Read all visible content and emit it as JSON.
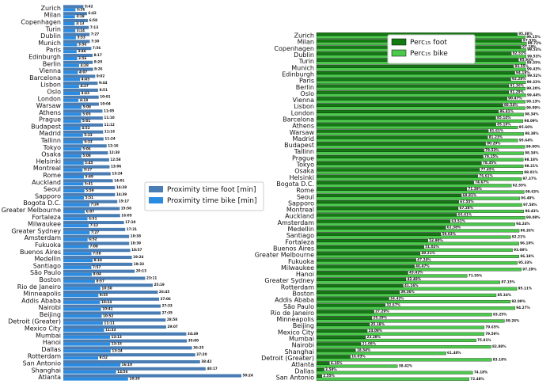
{
  "chart_data": [
    {
      "type": "bar",
      "orientation": "horizontal",
      "legend": "center",
      "xlim": [
        0,
        56
      ],
      "categories": [
        "Zurich",
        "Milan",
        "Copenhagen",
        "Turin",
        "Dublin",
        "Munich",
        "Paris",
        "Edinburgh",
        "Berlin",
        "Vienna",
        "Barcelona",
        "Lisbon",
        "Oslo",
        "London",
        "Warsaw",
        "Athens",
        "Prague",
        "Budapest",
        "Madrid",
        "Tallinn",
        "Tokyo",
        "Osaka",
        "Helsinki",
        "Montreal",
        "Rome",
        "Auckland",
        "Seoul",
        "Sapporo",
        "Bogota D.C.",
        "Greater Melbourne",
        "Fortaleza",
        "Milwaukee",
        "Greater Sydney",
        "Amsterdam",
        "Fukuoka",
        "Buenos Aires",
        "Medellin",
        "Santiago",
        "São Paulo",
        "Boston",
        "Rio de Janeiro",
        "Minneapolis",
        "Addis Ababa",
        "Nairobi",
        "Beijing",
        "Detroit (Greater)",
        "Mexico City",
        "Mumbai",
        "Hanoi",
        "Dallas",
        "Rotterdam",
        "San Antonio",
        "Shanghai",
        "Atlanta"
      ],
      "series": [
        {
          "name": "Proximity time foot [min]",
          "color": "#4a7db3",
          "values": [
            5.7,
            6.7,
            6.9667,
            7.2167,
            7.45,
            7.5,
            7.9333,
            8.2833,
            8.3333,
            8.4333,
            9.0333,
            9.7333,
            9.85,
            10.0167,
            10.0667,
            11.0833,
            11.1667,
            11.2,
            11.2667,
            11.4,
            12.2667,
            12.6333,
            12.9667,
            13.1,
            13.4,
            14.0167,
            14.6333,
            14.65,
            15.2833,
            15.9667,
            16.0833,
            17.1667,
            17.5167,
            18.6333,
            18.65,
            18.95,
            19.4,
            19.55,
            20.2167,
            23.1833,
            25.3167,
            26.75,
            27.1,
            27.55,
            27.5833,
            28.9667,
            29.1167,
            34.8167,
            35,
            36.4167,
            37.3333,
            38.7,
            40.2833,
            50.4
          ],
          "value_labels": [
            "5:42",
            "6:42",
            "6:58",
            "7:13",
            "7:27",
            "7:30",
            "7:56",
            "8:17",
            "8:20",
            "8:26",
            "9:02",
            "9:44",
            "9:51",
            "10:01",
            "10:04",
            "11:05",
            "11:10",
            "11:12",
            "11:16",
            "11:24",
            "12:16",
            "12:38",
            "12:58",
            "13:06",
            "13:24",
            "14:01",
            "14:38",
            "14:39",
            "15:17",
            "15:58",
            "16:05",
            "17:10",
            "17:31",
            "18:38",
            "18:39",
            "18:57",
            "19:24",
            "19:33",
            "20:13",
            "23:11",
            "25:19",
            "26:45",
            "27:06",
            "27:33",
            "27:35",
            "28:58",
            "29:07",
            "34:49",
            "35:00",
            "36:25",
            "37:20",
            "38:42",
            "40:17",
            "50:24"
          ]
        },
        {
          "name": "Proximity time bike [min]",
          "color": "#2b8be0",
          "values": [
            3.4333,
            3.3,
            3.2167,
            3.4,
            3.55,
            3.9333,
            3.7667,
            3.9333,
            4.4667,
            4.1167,
            4.75,
            4.45,
            4.7167,
            4.3,
            5.15,
            5.0833,
            5.0167,
            4.8667,
            5.55,
            5.55,
            5.1,
            5.1333,
            5.75,
            5.45,
            5.8167,
            5.6833,
            5.9833,
            5.85,
            7.4,
            6.1167,
            6.85,
            7.2,
            7.45,
            6.8667,
            7.15,
            7.9667,
            8.3,
            7.95,
            8.0667,
            8.95,
            10.5,
            9.9167,
            10.4,
            10.6833,
            10.8667,
            11.1833,
            11.55,
            13.2167,
            13.25,
            13.4,
            9.8667,
            16.1667,
            14.9333,
            18.3333
          ],
          "value_labels": [
            "3:26",
            "3:18",
            "3:13",
            "3:24",
            "3:33",
            "3:56",
            "3:46",
            "3:56",
            "4:28",
            "4:07",
            "4:45",
            "4:27",
            "4:43",
            "4:18",
            "5:09",
            "5:05",
            "5:01",
            "4:52",
            "5:33",
            "5:33",
            "5:06",
            "5:08",
            "5:45",
            "5:27",
            "5:49",
            "5:41",
            "5:59",
            "5:51",
            "7:24",
            "6:07",
            "6:51",
            "7:12",
            "7:27",
            "6:52",
            "7:09",
            "7:58",
            "8:18",
            "7:57",
            "8:04",
            "8:57",
            "10:30",
            "9:55",
            "10:24",
            "10:41",
            "10:52",
            "11:11",
            "11:33",
            "13:13",
            "13:15",
            "13:24",
            "9:52",
            "16:10",
            "14:56",
            "18:20"
          ]
        }
      ]
    },
    {
      "type": "bar",
      "orientation": "horizontal",
      "legend": "upper center",
      "xlim": [
        0,
        100
      ],
      "categories": [
        "Zurich",
        "Milan",
        "Copenhagen",
        "Dublin",
        "Turin",
        "Munich",
        "Edinburgh",
        "Paris",
        "Berlin",
        "Oslo",
        "Vienna",
        "Lisbon",
        "London",
        "Barcelona",
        "Athens",
        "Warsaw",
        "Madrid",
        "Budapest",
        "Tallinn",
        "Prague",
        "Tokyo",
        "Osaka",
        "Helsinki",
        "Bogota D.C.",
        "Rome",
        "Seoul",
        "Sapporo",
        "Montreal",
        "Auckland",
        "Amsterdam",
        "Medellin",
        "Santiago",
        "Fortaleza",
        "Buenos Aires",
        "Greater Melbourne",
        "Fukuoka",
        "Milwaukee",
        "Hanoi",
        "Greater Sydney",
        "Rotterdam",
        "Boston",
        "Addis Ababa",
        "São Paulo",
        "Rio de Janeiro",
        "Minneapolis",
        "Beijing",
        "Mexico City",
        "Mumbai",
        "Nairobi",
        "Shanghai",
        "Detroit (Greater)",
        "Atlanta",
        "Dallas",
        "San Antonio"
      ],
      "series": [
        {
          "name": "Perc₁₅ foot",
          "color": "#137a13",
          "values": [
            95.38,
            97.53,
            97.18,
            92.53,
            95.93,
            93.55,
            94.18,
            92.28,
            91.36,
            91.29,
            90.47,
            88.54,
            86.41,
            85.14,
            85.19,
            81.61,
            81.23,
            80.29,
            79.53,
            79.15,
            78.35,
            77.45,
            76.61,
            74.67,
            71.38,
            68.81,
            67.55,
            67.28,
            66.61,
            63.51,
            61.38,
            59.02,
            52.9,
            51.02,
            49.21,
            47.24,
            46.47,
            43.42,
            42.48,
            41.16,
            39.36,
            34.42,
            32.67,
            27.29,
            26.29,
            25.18,
            24.08,
            23.28,
            21.08,
            18.54,
            16.03,
            6.16,
            3.59,
            2.55
          ],
          "value_labels": [
            "95.38%",
            "97.53%",
            "97.18%",
            "92.53%",
            "95.93%",
            "93.55%",
            "94.18%",
            "92.28%",
            "91.36%",
            "91.29%",
            "90.47%",
            "88.54%",
            "86.41%",
            "85.14%",
            "85.19%",
            "81.61%",
            "81.23%",
            "80.29%",
            "79.53%",
            "79.15%",
            "78.35%",
            "77.45%",
            "76.61%",
            "74.67%",
            "71.38%",
            "68.81%",
            "67.55%",
            "67.28%",
            "66.61%",
            "63.51%",
            "61.38%",
            "59.02%",
            "52.90%",
            "51.02%",
            "49.21%",
            "47.24%",
            "46.47%",
            "43.42%",
            "42.48%",
            "41.16%",
            "39.36%",
            "34.42%",
            "32.67%",
            "27.29%",
            "26.29%",
            "25.18%",
            "24.08%",
            "23.28%",
            "21.08%",
            "18.54%",
            "16.03%",
            "6.16%",
            "3.59%",
            "2.55%"
          ]
        },
        {
          "name": "Perc₁₅ bike",
          "color": "#4cc94c",
          "values": [
            99.15,
            99.72,
            99.53,
            99.53,
            99.35,
            99.43,
            99.52,
            99.33,
            99.2,
            99.44,
            99.13,
            99.09,
            98.34,
            98.09,
            95.6,
            98.38,
            95.64,
            99.0,
            98.34,
            98.18,
            98.21,
            98.01,
            97.37,
            92.55,
            98.63,
            96.49,
            97.58,
            98.43,
            99.08,
            94.24,
            96.26,
            92.21,
            96.1,
            93.08,
            96.18,
            95.33,
            97.29,
            71.55,
            87.15,
            95.11,
            85.34,
            92.09,
            94.27,
            83.25,
            89.26,
            79.65,
            79.59,
            75.81,
            82.88,
            61.48,
            83.18,
            38.42,
            74.18,
            72.48
          ],
          "value_labels": [
            "99.15%",
            "99.72%",
            "99.53%",
            "99.53%",
            "99.35%",
            "99.43%",
            "99.52%",
            "99.33%",
            "99.20%",
            "99.44%",
            "99.13%",
            "99.09%",
            "98.34%",
            "98.09%",
            "95.60%",
            "98.38%",
            "95.64%",
            "99.00%",
            "98.34%",
            "98.18%",
            "98.21%",
            "98.01%",
            "97.37%",
            "92.55%",
            "98.63%",
            "96.49%",
            "97.58%",
            "98.43%",
            "99.08%",
            "94.24%",
            "96.26%",
            "92.21%",
            "96.10%",
            "93.08%",
            "96.18%",
            "95.33%",
            "97.29%",
            "71.55%",
            "87.15%",
            "95.11%",
            "85.34%",
            "92.09%",
            "94.27%",
            "83.25%",
            "89.26%",
            "79.65%",
            "79.59%",
            "75.81%",
            "82.88%",
            "61.48%",
            "83.18%",
            "38.42%",
            "74.18%",
            "72.48%"
          ]
        }
      ]
    }
  ]
}
